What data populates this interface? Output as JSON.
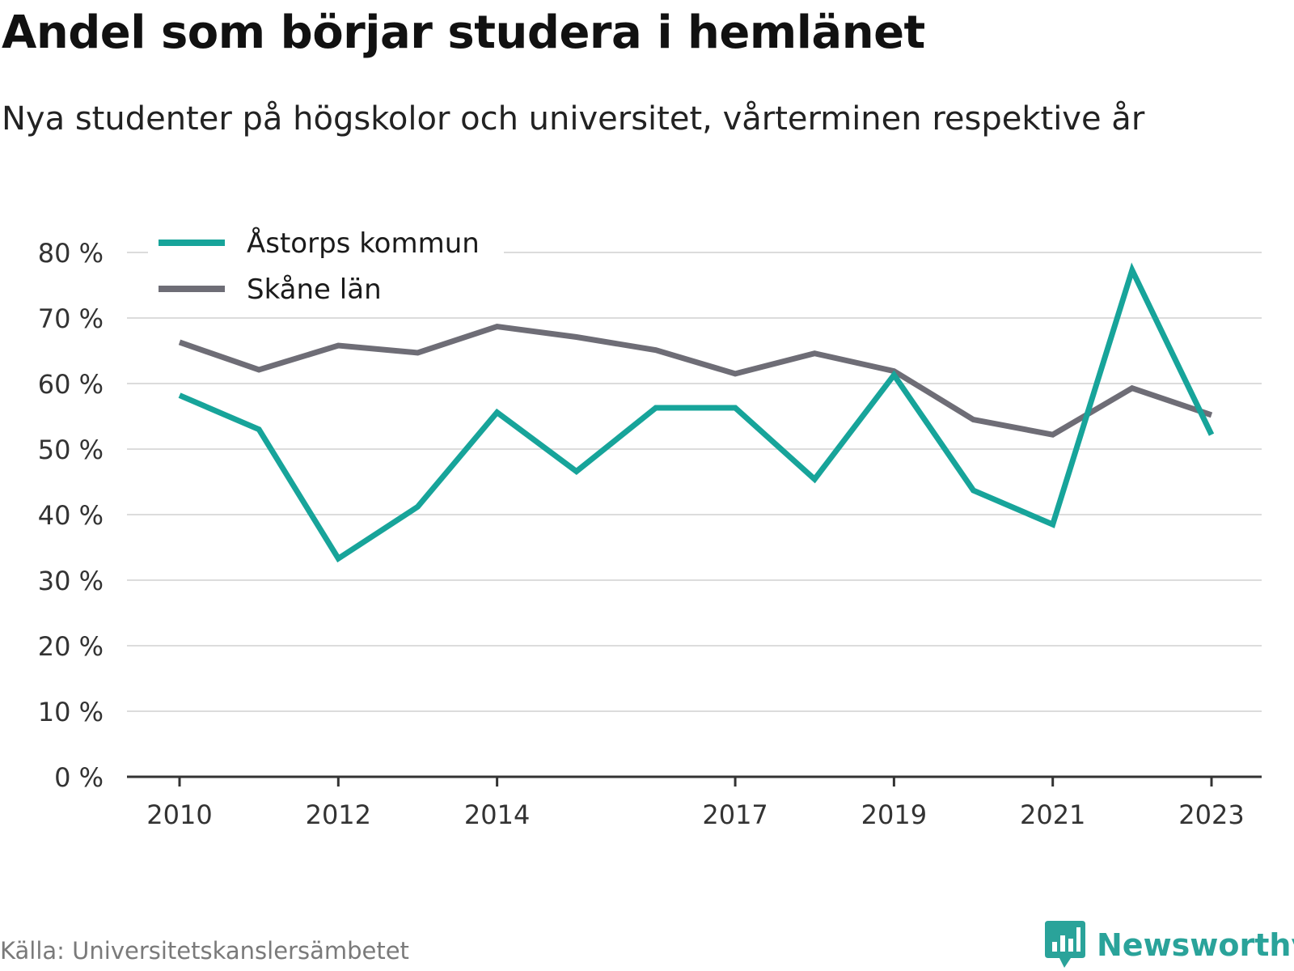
{
  "title": "Andel som börjar studera i hemlänet",
  "subtitle": "Nya studenter på högskolor och universitet, vårterminen respektive år",
  "source": "Källa: Universitetskanslersämbetet",
  "brand": {
    "name": "Newsworthy",
    "logo_icon": "newsworthy-chart-bubble-icon",
    "color": "#2aa39a"
  },
  "chart_data": {
    "type": "line",
    "x": [
      2010,
      2011,
      2012,
      2013,
      2014,
      2015,
      2016,
      2017,
      2018,
      2019,
      2020,
      2021,
      2022,
      2023
    ],
    "x_tick_labels": [
      "2010",
      "2012",
      "2014",
      "2017",
      "2019",
      "2021",
      "2023"
    ],
    "y_tick_labels": [
      "0 %",
      "10 %",
      "20 %",
      "30 %",
      "40 %",
      "50 %",
      "60 %",
      "70 %",
      "80 %"
    ],
    "ylim": [
      0,
      80
    ],
    "grid": true,
    "legend_position": "top-left",
    "series": [
      {
        "name": "Åstorps kommun",
        "color": "#17a49a",
        "values": [
          58.2,
          53.0,
          33.3,
          41.2,
          55.6,
          46.6,
          56.3,
          56.3,
          45.4,
          61.3,
          43.7,
          38.5,
          77.3,
          52.2
        ]
      },
      {
        "name": "Skåne län",
        "color": "#6e6d76",
        "values": [
          66.3,
          62.1,
          65.8,
          64.7,
          68.7,
          67.1,
          65.1,
          61.5,
          64.6,
          61.9,
          54.5,
          52.2,
          59.3,
          55.2
        ]
      }
    ]
  }
}
